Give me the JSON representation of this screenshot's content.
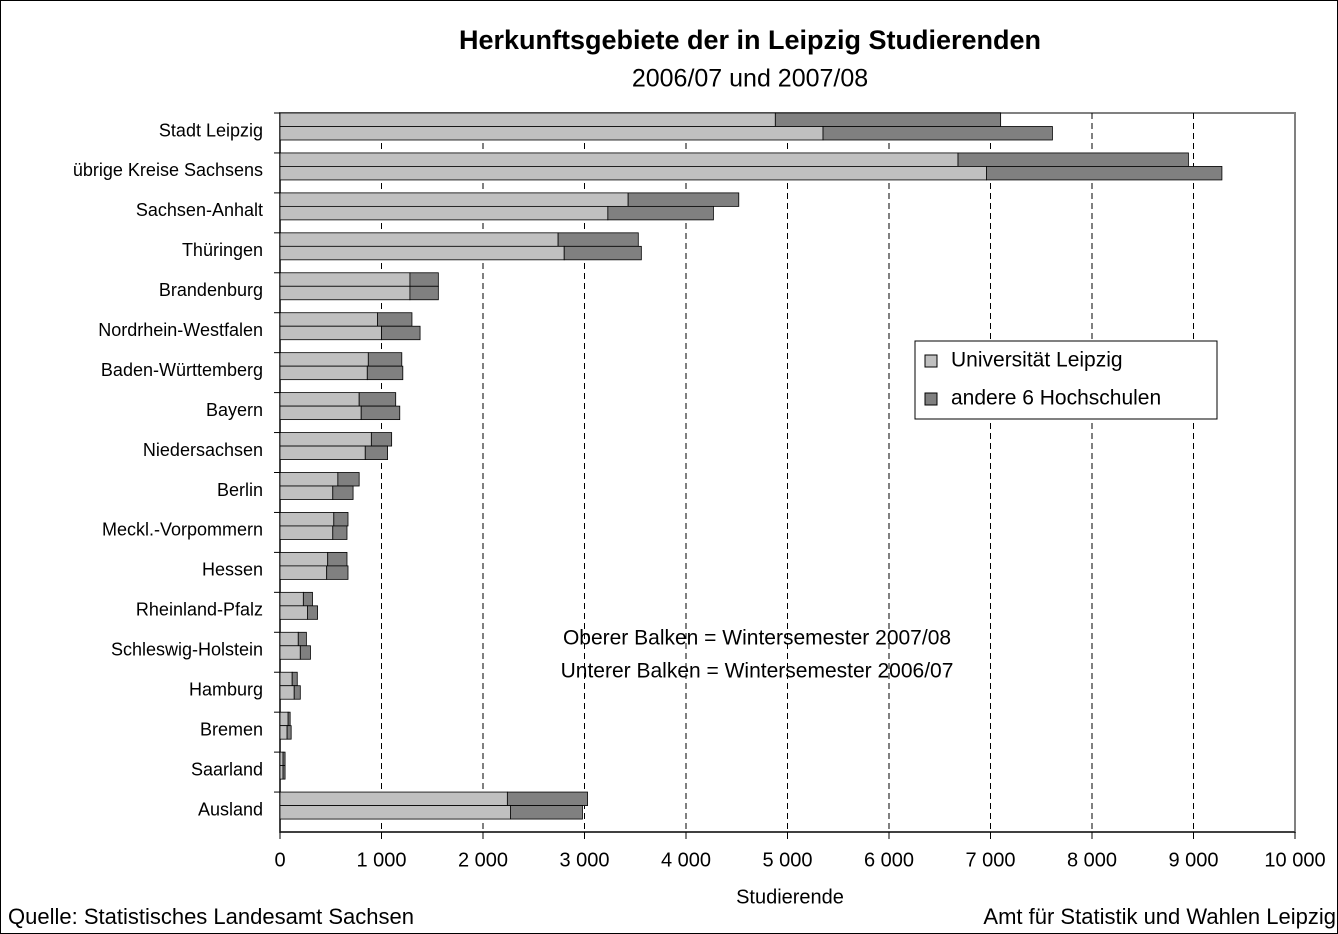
{
  "chart_data": {
    "type": "bar",
    "orientation": "horizontal",
    "stacked": true,
    "title": "Herkunftsgebiete der in Leipzig Studierenden",
    "subtitle": "2006/07 und 2007/08",
    "xlabel": "Studierende",
    "annotations": [
      "Oberer Balken = Wintersemester 2007/08",
      "Unterer Balken = Wintersemester 2006/07"
    ],
    "source": "Quelle: Statistisches Landesamt Sachsen",
    "credit": "Amt für Statistik und Wahlen Leipzig",
    "categories": [
      "Stadt Leipzig",
      "übrige Kreise Sachsens",
      "Sachsen-Anhalt",
      "Thüringen",
      "Brandenburg",
      "Nordrhein-Westfalen",
      "Baden-Württemberg",
      "Bayern",
      "Niedersachsen",
      "Berlin",
      "Meckl.-Vorpommern",
      "Hessen",
      "Rheinland-Pfalz",
      "Schleswig-Holstein",
      "Hamburg",
      "Bremen",
      "Saarland",
      "Ausland"
    ],
    "series": [
      {
        "name": "Universität Leipzig",
        "color": "#c0c0c0",
        "values": [
          4880,
          6680,
          3430,
          2740,
          1280,
          960,
          870,
          780,
          900,
          570,
          530,
          470,
          230,
          180,
          120,
          80,
          30,
          2240
        ],
        "values_lower": [
          5350,
          6960,
          3230,
          2800,
          1280,
          1000,
          860,
          800,
          840,
          520,
          520,
          460,
          270,
          200,
          140,
          70,
          30,
          2270
        ]
      },
      {
        "name": "andere 6 Hochschulen",
        "color": "#808080",
        "values": [
          2220,
          2270,
          1090,
          790,
          280,
          340,
          330,
          360,
          200,
          210,
          140,
          190,
          90,
          80,
          50,
          20,
          20,
          790
        ],
        "values_lower": [
          2260,
          2320,
          1040,
          760,
          280,
          380,
          350,
          380,
          220,
          200,
          140,
          210,
          100,
          100,
          60,
          40,
          20,
          710
        ]
      }
    ],
    "xlim": [
      0,
      10000
    ],
    "xticks": [
      0,
      {
        "value": 1000,
        "label": "1 000"
      },
      {
        "value": 2000,
        "label": "2 000"
      },
      {
        "value": 3000,
        "label": "3 000"
      },
      {
        "value": 4000,
        "label": "4 000"
      },
      {
        "value": 5000,
        "label": "5 000"
      },
      {
        "value": 6000,
        "label": "6 000"
      },
      {
        "value": 7000,
        "label": "7 000"
      },
      {
        "value": 8000,
        "label": "8 000"
      },
      {
        "value": 9000,
        "label": "9 000"
      },
      {
        "value": 10000,
        "label": "10 000"
      }
    ],
    "grid": true,
    "legend": "right"
  }
}
